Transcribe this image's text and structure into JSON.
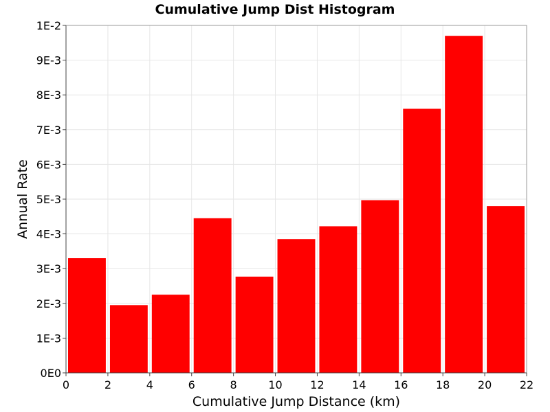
{
  "chart_data": {
    "type": "bar",
    "title": "Cumulative Jump Dist Histogram",
    "xlabel": "Cumulative Jump Distance (km)",
    "ylabel": "Annual Rate",
    "xlim": [
      0,
      22
    ],
    "ylim": [
      0,
      0.01
    ],
    "x_ticks": [
      0,
      2,
      4,
      6,
      8,
      10,
      12,
      14,
      16,
      18,
      20,
      22
    ],
    "x_tick_labels": [
      "0",
      "2",
      "4",
      "6",
      "8",
      "10",
      "12",
      "14",
      "16",
      "18",
      "20",
      "22"
    ],
    "y_ticks": [
      0,
      0.001,
      0.002,
      0.003,
      0.004,
      0.005,
      0.006,
      0.007,
      0.008,
      0.009,
      0.01
    ],
    "y_tick_labels": [
      "0E0",
      "1E-3",
      "2E-3",
      "3E-3",
      "4E-3",
      "5E-3",
      "6E-3",
      "7E-3",
      "8E-3",
      "9E-3",
      "1E-2"
    ],
    "bin_width": 2,
    "bin_centers": [
      1,
      3,
      5,
      7,
      9,
      11,
      13,
      15,
      17,
      19,
      21
    ],
    "values": [
      0.0033,
      0.00195,
      0.00225,
      0.00445,
      0.00277,
      0.00385,
      0.00422,
      0.00497,
      0.0076,
      0.0097,
      0.0048
    ],
    "grid": true,
    "legend": "none",
    "colors": {
      "bar": "#ff0000"
    }
  }
}
